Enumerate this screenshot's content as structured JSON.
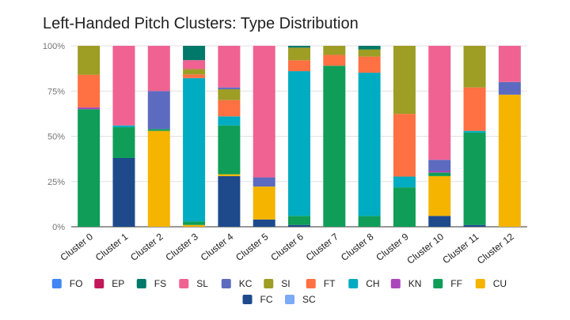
{
  "chart_data": {
    "type": "bar",
    "stacked": true,
    "normalized": true,
    "title": "Left-Handed Pitch Clusters: Type Distribution",
    "xlabel": "",
    "ylabel": "",
    "ylim": [
      0,
      100
    ],
    "y_ticks": [
      "0%",
      "25%",
      "50%",
      "75%",
      "100%"
    ],
    "y_tick_values": [
      0,
      25,
      50,
      75,
      100
    ],
    "grid": true,
    "legend_position": "bottom",
    "categories": [
      "Cluster 0",
      "Cluster 1",
      "Cluster 2",
      "Cluster 3",
      "Cluster 4",
      "Cluster 5",
      "Cluster 6",
      "Cluster 7",
      "Cluster 8",
      "Cluster 9",
      "Cluster 10",
      "Cluster 11",
      "Cluster 12"
    ],
    "series": [
      {
        "name": "FO",
        "color": "#4285f4",
        "values": [
          0,
          0,
          0,
          0,
          0,
          0,
          0,
          0,
          0,
          0,
          0,
          0,
          0
        ]
      },
      {
        "name": "EP",
        "color": "#c2185b",
        "values": [
          0,
          0,
          0,
          0,
          0,
          0,
          0,
          0,
          0,
          0,
          0,
          0,
          0
        ]
      },
      {
        "name": "FS",
        "color": "#00796b",
        "values": [
          0,
          0,
          0,
          8,
          0,
          0,
          1,
          0,
          2,
          0,
          0,
          0,
          0
        ]
      },
      {
        "name": "SL",
        "color": "#f06292",
        "values": [
          0,
          44,
          25,
          5,
          23,
          72,
          0,
          0,
          0,
          0,
          63,
          0,
          20
        ]
      },
      {
        "name": "KC",
        "color": "#5c6bc0",
        "values": [
          0,
          0,
          21,
          0,
          1,
          5,
          0,
          0,
          0,
          0,
          6,
          0,
          7
        ]
      },
      {
        "name": "SI",
        "color": "#9e9d24",
        "values": [
          16,
          0,
          0,
          3,
          6,
          0,
          7,
          5,
          4,
          38,
          0,
          23,
          0
        ]
      },
      {
        "name": "FT",
        "color": "#ff7043",
        "values": [
          18,
          0,
          0,
          2,
          9,
          0,
          6,
          6,
          9,
          35,
          0,
          24,
          0
        ]
      },
      {
        "name": "CH",
        "color": "#00acc1",
        "values": [
          0,
          1,
          0,
          80,
          5,
          0,
          80,
          0,
          80,
          6,
          0,
          1,
          0
        ]
      },
      {
        "name": "KN",
        "color": "#ab47bc",
        "values": [
          1,
          0,
          0,
          0,
          0,
          0,
          0,
          0,
          0,
          0,
          1,
          0,
          0
        ]
      },
      {
        "name": "FF",
        "color": "#0f9d58",
        "values": [
          65,
          17,
          1,
          2,
          27,
          0,
          5,
          89,
          6,
          22,
          2,
          51,
          0
        ]
      },
      {
        "name": "CU",
        "color": "#f4b400",
        "values": [
          0,
          0,
          53,
          1,
          1,
          18,
          0,
          0,
          0,
          0,
          22,
          0,
          73
        ]
      },
      {
        "name": "FC",
        "color": "#1e4a8c",
        "values": [
          0,
          38,
          0,
          0,
          28,
          4,
          1,
          0,
          0,
          0,
          6,
          1,
          0
        ]
      },
      {
        "name": "SC",
        "color": "#7baaf7",
        "values": [
          0,
          0,
          0,
          0,
          0,
          0,
          0,
          0,
          0,
          0,
          0,
          0,
          0
        ]
      }
    ],
    "legend_order": [
      "FO",
      "EP",
      "FS",
      "SL",
      "KC",
      "SI",
      "FT",
      "CH",
      "KN",
      "FF",
      "CU",
      "FC",
      "SC"
    ]
  }
}
